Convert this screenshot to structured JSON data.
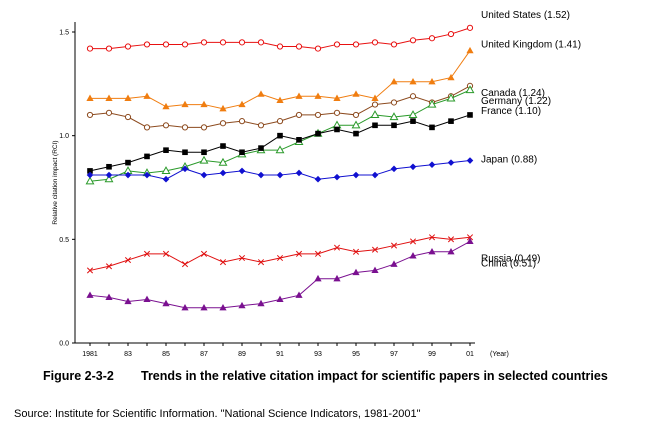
{
  "chart_data": {
    "type": "line",
    "title": "",
    "ylabel": "Relative citation impact (RCI)",
    "xlabel": "(Year)",
    "ylim": [
      0.0,
      1.5
    ],
    "yticks": [
      0.0,
      0.5,
      1.0,
      1.5
    ],
    "ytick_labels": [
      "0.0",
      "0.5",
      "1.0",
      "1.5"
    ],
    "xlim": [
      1981,
      2001
    ],
    "xtick_values": [
      1981,
      1983,
      1985,
      1987,
      1989,
      1991,
      1993,
      1995,
      1997,
      1999,
      2001
    ],
    "xtick_labels": [
      "1981",
      "83",
      "85",
      "87",
      "89",
      "91",
      "93",
      "95",
      "97",
      "99",
      "01"
    ],
    "x": [
      1981,
      1982,
      1983,
      1984,
      1985,
      1986,
      1987,
      1988,
      1989,
      1990,
      1991,
      1992,
      1993,
      1994,
      1995,
      1996,
      1997,
      1998,
      1999,
      2000,
      2001
    ],
    "grid": false,
    "legend": "labels at right end of each line",
    "series": [
      {
        "name": "United States",
        "label": "United States (1.52)",
        "color": "#e81010",
        "marker": "circle-open",
        "values": [
          1.42,
          1.42,
          1.43,
          1.44,
          1.44,
          1.44,
          1.45,
          1.45,
          1.45,
          1.45,
          1.43,
          1.43,
          1.42,
          1.44,
          1.44,
          1.45,
          1.44,
          1.46,
          1.47,
          1.49,
          1.52
        ]
      },
      {
        "name": "United Kingdom",
        "label": "United Kingdom (1.41)",
        "color": "#f07d10",
        "marker": "triangle",
        "values": [
          1.18,
          1.18,
          1.18,
          1.19,
          1.14,
          1.15,
          1.15,
          1.13,
          1.15,
          1.2,
          1.17,
          1.19,
          1.19,
          1.18,
          1.2,
          1.18,
          1.26,
          1.26,
          1.26,
          1.28,
          1.41
        ]
      },
      {
        "name": "Canada",
        "label": "Canada (1.24)",
        "color": "#8c4a1e",
        "marker": "circle-open",
        "values": [
          1.1,
          1.11,
          1.09,
          1.04,
          1.05,
          1.04,
          1.04,
          1.06,
          1.07,
          1.05,
          1.07,
          1.1,
          1.1,
          1.11,
          1.1,
          1.15,
          1.16,
          1.19,
          1.16,
          1.19,
          1.24
        ]
      },
      {
        "name": "Germany",
        "label": "Germany (1.22)",
        "color": "#2a9a2a",
        "marker": "triangle-open",
        "values": [
          0.78,
          0.79,
          0.83,
          0.82,
          0.83,
          0.85,
          0.88,
          0.87,
          0.91,
          0.93,
          0.93,
          0.97,
          1.01,
          1.05,
          1.05,
          1.1,
          1.09,
          1.1,
          1.15,
          1.18,
          1.22
        ]
      },
      {
        "name": "France",
        "label": "France (1.10)",
        "color": "#000000",
        "marker": "square",
        "values": [
          0.83,
          0.85,
          0.87,
          0.9,
          0.93,
          0.92,
          0.92,
          0.95,
          0.92,
          0.94,
          1.0,
          0.98,
          1.01,
          1.03,
          1.01,
          1.05,
          1.05,
          1.07,
          1.04,
          1.07,
          1.1
        ]
      },
      {
        "name": "Japan",
        "label": "Japan (0.88)",
        "color": "#1010d0",
        "marker": "diamond",
        "values": [
          0.81,
          0.81,
          0.81,
          0.81,
          0.79,
          0.84,
          0.81,
          0.82,
          0.83,
          0.81,
          0.81,
          0.82,
          0.79,
          0.8,
          0.81,
          0.81,
          0.84,
          0.85,
          0.86,
          0.87,
          0.88
        ]
      },
      {
        "name": "China",
        "label": "China (0.51)",
        "color": "#e01010",
        "marker": "x",
        "values": [
          0.35,
          0.37,
          0.4,
          0.43,
          0.43,
          0.38,
          0.43,
          0.39,
          0.41,
          0.39,
          0.41,
          0.43,
          0.43,
          0.46,
          0.44,
          0.45,
          0.47,
          0.49,
          0.51,
          0.5,
          0.51
        ]
      },
      {
        "name": "Russia",
        "label": "Russia (0.49)",
        "color": "#7a1090",
        "marker": "triangle",
        "values": [
          0.23,
          0.22,
          0.2,
          0.21,
          0.19,
          0.17,
          0.17,
          0.17,
          0.18,
          0.19,
          0.21,
          0.23,
          0.31,
          0.31,
          0.34,
          0.35,
          0.38,
          0.42,
          0.44,
          0.44,
          0.49
        ]
      }
    ]
  },
  "figure": {
    "number": "Figure 2-3-2",
    "title": "Trends in the relative citation impact for scientific papers in selected countries"
  },
  "source": "Source: Institute for Scientific Information. \"National Science Indicators, 1981-2001\""
}
